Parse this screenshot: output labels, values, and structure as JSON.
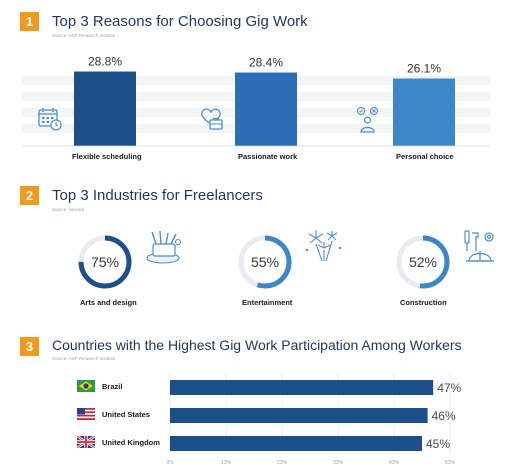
{
  "colors": {
    "accent": "#f39a1e",
    "title": "#1f3864",
    "bar_dark": "#1d4f8a",
    "bar_mid": "#2d6db5",
    "bar_light": "#3d87c9",
    "ring_track": "#e8ebf0"
  },
  "sections": [
    {
      "number": "1",
      "title": "Top 3 Reasons for Choosing Gig Work",
      "source": "Source: ADP Research Institute"
    },
    {
      "number": "2",
      "title": "Top 3 Industries for Freelancers",
      "source": "Source: Upwork"
    },
    {
      "number": "3",
      "title": "Countries with the Highest Gig Work Participation Among Workers",
      "source": "Source: ADP Research Institute"
    }
  ],
  "chart_data": [
    {
      "type": "bar",
      "title": "Top 3 Reasons for Choosing Gig Work",
      "categories": [
        "Flexible scheduling",
        "Passionate work",
        "Personal choice"
      ],
      "values": [
        28.8,
        28.4,
        26.1
      ],
      "value_labels": [
        "28.8%",
        "28.4%",
        "26.1%"
      ],
      "icons": [
        "calendar-icon",
        "heart-briefcase-icon",
        "decision-person-icon"
      ],
      "grid": false
    },
    {
      "type": "pie",
      "title": "Top 3 Industries for Freelancers",
      "categories": [
        "Arts and design",
        "Entertainment",
        "Construction"
      ],
      "values": [
        75,
        55,
        52
      ],
      "value_labels": [
        "75%",
        "55%",
        "52%"
      ],
      "icons": [
        "art-supplies-icon",
        "fireworks-icon",
        "construction-tools-icon"
      ]
    },
    {
      "type": "bar",
      "orientation": "horizontal",
      "title": "Countries with the Highest Gig Work Participation Among Workers",
      "categories": [
        "Brazil",
        "United States",
        "United Kingdom"
      ],
      "values": [
        47,
        46,
        45
      ],
      "value_labels": [
        "47%",
        "46%",
        "45%"
      ],
      "flags": [
        "brazil-flag-icon",
        "us-flag-icon",
        "uk-flag-icon"
      ],
      "xlim": [
        0,
        50
      ],
      "x_ticks": [
        "0%",
        "10%",
        "20%",
        "30%",
        "40%",
        "50%"
      ],
      "grid": true
    }
  ]
}
